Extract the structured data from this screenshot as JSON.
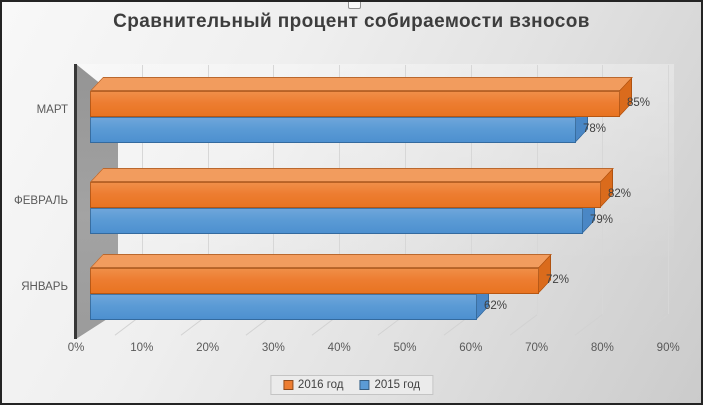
{
  "title": "Сравнительный процент собираемости взносов",
  "chart_data": {
    "type": "bar",
    "orientation": "horizontal",
    "style": "3d",
    "title": "Сравнительный процент собираемости взносов",
    "categories": [
      "МАРТ",
      "ФЕВРАЛЬ",
      "ЯНВАРЬ"
    ],
    "series": [
      {
        "name": "2016 год",
        "color": "#ED7D31",
        "values": [
          85,
          82,
          72
        ],
        "data_labels": [
          "85%",
          "82%",
          "72%"
        ]
      },
      {
        "name": "2015 год",
        "color": "#5B9BD5",
        "values": [
          78,
          79,
          62
        ],
        "data_labels": [
          "78%",
          "79%",
          "62%"
        ]
      }
    ],
    "x_ticks": [
      "0%",
      "10%",
      "20%",
      "30%",
      "40%",
      "50%",
      "60%",
      "70%",
      "80%",
      "90%"
    ],
    "xlim": [
      0,
      90
    ],
    "value_unit": "%",
    "data_labels_shown": true,
    "legend_position": "bottom",
    "grid": true
  },
  "colors": {
    "series_2016": "#ED7D31",
    "series_2015": "#5B9BD5",
    "frame": "#242424",
    "wall": "#9c9c9c",
    "text": "#595959",
    "title_text": "#3d3d3d"
  }
}
